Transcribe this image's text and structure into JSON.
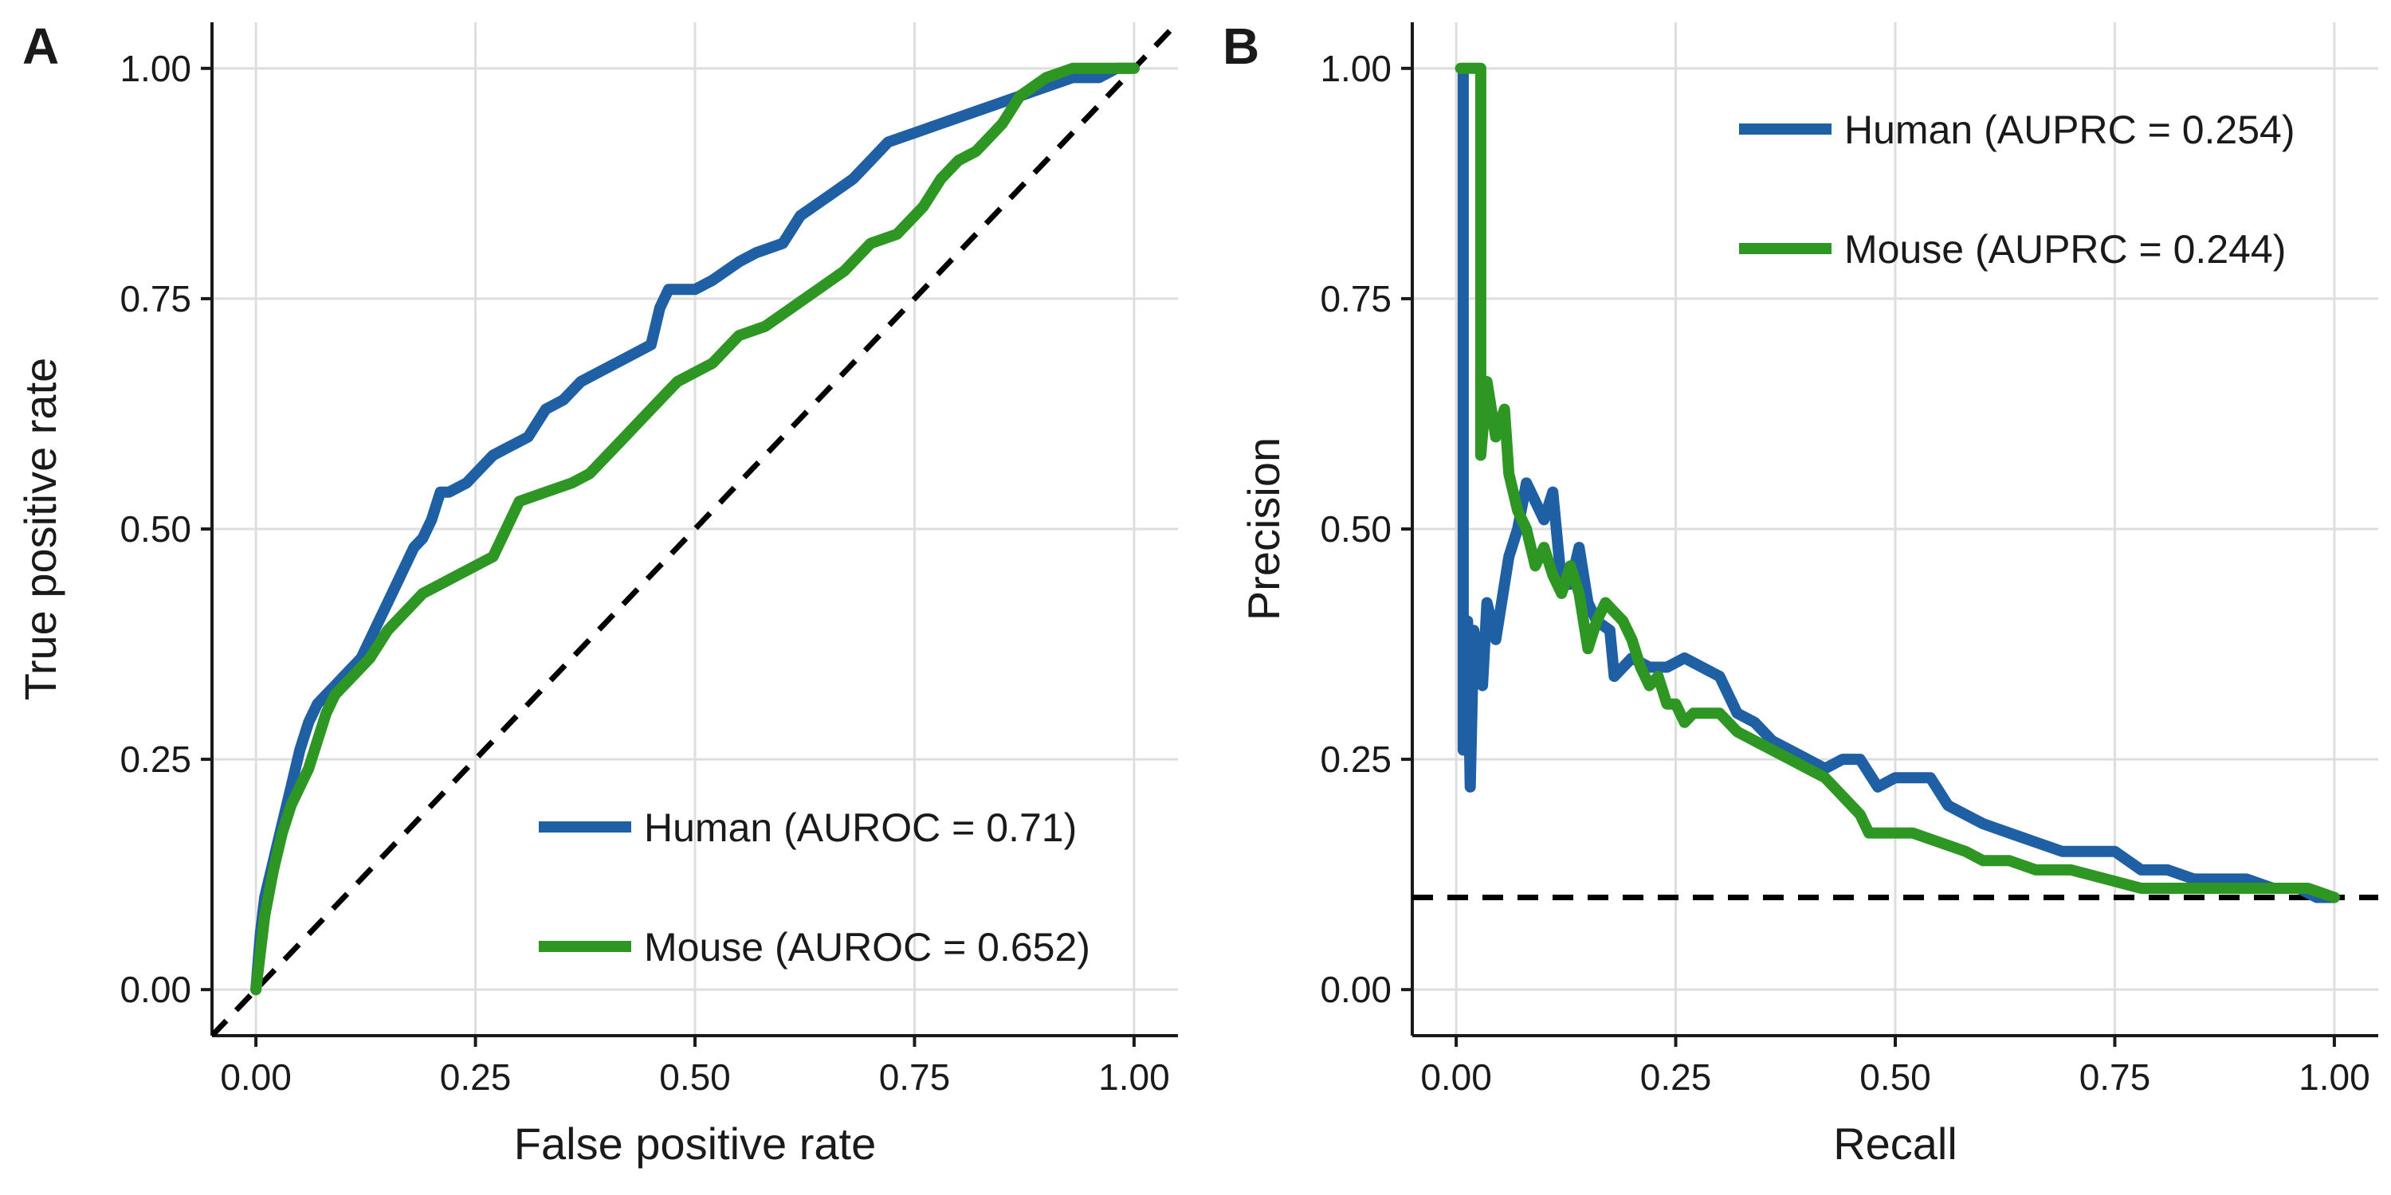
{
  "colors": {
    "human": "#1f5fa3",
    "mouse": "#2e9622",
    "reference": "#000000",
    "grid": "#dedede"
  },
  "chart_data": [
    {
      "type": "line",
      "panel_letter": "A",
      "xlabel": "False positive rate",
      "ylabel": "True positive rate",
      "xlim": [
        -0.05,
        1.05
      ],
      "ylim": [
        -0.05,
        1.05
      ],
      "x_ticks": [
        "0.00",
        "0.25",
        "0.50",
        "0.75",
        "1.00"
      ],
      "y_ticks": [
        "0.00",
        "0.25",
        "0.50",
        "0.75",
        "1.00"
      ],
      "grid": true,
      "legend_position": "bottom-right",
      "reference_line": {
        "style": "dashed",
        "points": [
          [
            -0.05,
            -0.05
          ],
          [
            1.05,
            1.05
          ]
        ]
      },
      "series": [
        {
          "name": "Human (AUROC = 0.71)",
          "color_key": "human",
          "points": [
            [
              0,
              0
            ],
            [
              0.005,
              0.06
            ],
            [
              0.01,
              0.1
            ],
            [
              0.02,
              0.14
            ],
            [
              0.03,
              0.18
            ],
            [
              0.04,
              0.22
            ],
            [
              0.05,
              0.26
            ],
            [
              0.06,
              0.29
            ],
            [
              0.07,
              0.31
            ],
            [
              0.08,
              0.32
            ],
            [
              0.09,
              0.33
            ],
            [
              0.1,
              0.34
            ],
            [
              0.12,
              0.36
            ],
            [
              0.13,
              0.38
            ],
            [
              0.14,
              0.4
            ],
            [
              0.15,
              0.42
            ],
            [
              0.17,
              0.46
            ],
            [
              0.18,
              0.48
            ],
            [
              0.19,
              0.49
            ],
            [
              0.2,
              0.51
            ],
            [
              0.21,
              0.54
            ],
            [
              0.22,
              0.54
            ],
            [
              0.24,
              0.55
            ],
            [
              0.25,
              0.56
            ],
            [
              0.27,
              0.58
            ],
            [
              0.29,
              0.59
            ],
            [
              0.31,
              0.6
            ],
            [
              0.33,
              0.63
            ],
            [
              0.35,
              0.64
            ],
            [
              0.37,
              0.66
            ],
            [
              0.39,
              0.67
            ],
            [
              0.41,
              0.68
            ],
            [
              0.43,
              0.69
            ],
            [
              0.45,
              0.7
            ],
            [
              0.46,
              0.74
            ],
            [
              0.47,
              0.76
            ],
            [
              0.5,
              0.76
            ],
            [
              0.52,
              0.77
            ],
            [
              0.55,
              0.79
            ],
            [
              0.57,
              0.8
            ],
            [
              0.6,
              0.81
            ],
            [
              0.62,
              0.84
            ],
            [
              0.65,
              0.86
            ],
            [
              0.68,
              0.88
            ],
            [
              0.7,
              0.9
            ],
            [
              0.72,
              0.92
            ],
            [
              0.75,
              0.93
            ],
            [
              0.78,
              0.94
            ],
            [
              0.81,
              0.95
            ],
            [
              0.84,
              0.96
            ],
            [
              0.87,
              0.97
            ],
            [
              0.9,
              0.98
            ],
            [
              0.93,
              0.99
            ],
            [
              0.96,
              0.99
            ],
            [
              0.98,
              1.0
            ],
            [
              1.0,
              1.0
            ]
          ]
        },
        {
          "name": "Mouse (AUROC = 0.652)",
          "color_key": "mouse",
          "points": [
            [
              0,
              0
            ],
            [
              0.005,
              0.04
            ],
            [
              0.01,
              0.08
            ],
            [
              0.02,
              0.13
            ],
            [
              0.03,
              0.17
            ],
            [
              0.04,
              0.2
            ],
            [
              0.05,
              0.22
            ],
            [
              0.06,
              0.24
            ],
            [
              0.07,
              0.27
            ],
            [
              0.08,
              0.3
            ],
            [
              0.09,
              0.32
            ],
            [
              0.11,
              0.34
            ],
            [
              0.13,
              0.36
            ],
            [
              0.15,
              0.39
            ],
            [
              0.17,
              0.41
            ],
            [
              0.19,
              0.43
            ],
            [
              0.21,
              0.44
            ],
            [
              0.23,
              0.45
            ],
            [
              0.25,
              0.46
            ],
            [
              0.27,
              0.47
            ],
            [
              0.28,
              0.49
            ],
            [
              0.29,
              0.51
            ],
            [
              0.3,
              0.53
            ],
            [
              0.33,
              0.54
            ],
            [
              0.36,
              0.55
            ],
            [
              0.38,
              0.56
            ],
            [
              0.4,
              0.58
            ],
            [
              0.42,
              0.6
            ],
            [
              0.44,
              0.62
            ],
            [
              0.46,
              0.64
            ],
            [
              0.48,
              0.66
            ],
            [
              0.5,
              0.67
            ],
            [
              0.52,
              0.68
            ],
            [
              0.55,
              0.71
            ],
            [
              0.58,
              0.72
            ],
            [
              0.61,
              0.74
            ],
            [
              0.64,
              0.76
            ],
            [
              0.67,
              0.78
            ],
            [
              0.7,
              0.81
            ],
            [
              0.73,
              0.82
            ],
            [
              0.76,
              0.85
            ],
            [
              0.78,
              0.88
            ],
            [
              0.8,
              0.9
            ],
            [
              0.82,
              0.91
            ],
            [
              0.84,
              0.93
            ],
            [
              0.85,
              0.94
            ],
            [
              0.87,
              0.97
            ],
            [
              0.9,
              0.99
            ],
            [
              0.93,
              1.0
            ],
            [
              0.96,
              1.0
            ],
            [
              1.0,
              1.0
            ]
          ]
        }
      ]
    },
    {
      "type": "line",
      "panel_letter": "B",
      "xlabel": "Recall",
      "ylabel": "Precision",
      "xlim": [
        -0.05,
        1.05
      ],
      "ylim": [
        -0.05,
        1.05
      ],
      "x_ticks": [
        "0.00",
        "0.25",
        "0.50",
        "0.75",
        "1.00"
      ],
      "y_ticks": [
        "0.00",
        "0.25",
        "0.50",
        "0.75",
        "1.00"
      ],
      "grid": true,
      "legend_position": "top-right",
      "reference_line": {
        "style": "dashed",
        "points": [
          [
            -0.05,
            0.1
          ],
          [
            1.05,
            0.1
          ]
        ]
      },
      "series": [
        {
          "name": "Human (AUPRC = 0.254)",
          "color_key": "human",
          "points": [
            [
              0.008,
              1.0
            ],
            [
              0.008,
              0.26
            ],
            [
              0.013,
              0.4
            ],
            [
              0.016,
              0.22
            ],
            [
              0.02,
              0.39
            ],
            [
              0.03,
              0.33
            ],
            [
              0.035,
              0.42
            ],
            [
              0.045,
              0.38
            ],
            [
              0.06,
              0.47
            ],
            [
              0.07,
              0.5
            ],
            [
              0.08,
              0.55
            ],
            [
              0.09,
              0.53
            ],
            [
              0.1,
              0.51
            ],
            [
              0.11,
              0.54
            ],
            [
              0.12,
              0.44
            ],
            [
              0.13,
              0.44
            ],
            [
              0.14,
              0.48
            ],
            [
              0.15,
              0.42
            ],
            [
              0.16,
              0.4
            ],
            [
              0.175,
              0.39
            ],
            [
              0.18,
              0.34
            ],
            [
              0.2,
              0.36
            ],
            [
              0.22,
              0.35
            ],
            [
              0.24,
              0.35
            ],
            [
              0.26,
              0.36
            ],
            [
              0.28,
              0.35
            ],
            [
              0.3,
              0.34
            ],
            [
              0.32,
              0.3
            ],
            [
              0.34,
              0.29
            ],
            [
              0.36,
              0.27
            ],
            [
              0.38,
              0.26
            ],
            [
              0.4,
              0.25
            ],
            [
              0.42,
              0.24
            ],
            [
              0.44,
              0.25
            ],
            [
              0.46,
              0.25
            ],
            [
              0.48,
              0.22
            ],
            [
              0.5,
              0.23
            ],
            [
              0.54,
              0.23
            ],
            [
              0.56,
              0.2
            ],
            [
              0.58,
              0.19
            ],
            [
              0.6,
              0.18
            ],
            [
              0.63,
              0.17
            ],
            [
              0.66,
              0.16
            ],
            [
              0.69,
              0.15
            ],
            [
              0.72,
              0.15
            ],
            [
              0.75,
              0.15
            ],
            [
              0.78,
              0.13
            ],
            [
              0.81,
              0.13
            ],
            [
              0.84,
              0.12
            ],
            [
              0.87,
              0.12
            ],
            [
              0.9,
              0.12
            ],
            [
              0.93,
              0.11
            ],
            [
              0.96,
              0.11
            ],
            [
              0.98,
              0.1
            ],
            [
              1.0,
              0.1
            ]
          ]
        },
        {
          "name": "Mouse (AUPRC = 0.244)",
          "color_key": "mouse",
          "points": [
            [
              0.005,
              1.0
            ],
            [
              0.028,
              1.0
            ],
            [
              0.028,
              0.58
            ],
            [
              0.035,
              0.66
            ],
            [
              0.045,
              0.6
            ],
            [
              0.055,
              0.63
            ],
            [
              0.06,
              0.56
            ],
            [
              0.07,
              0.52
            ],
            [
              0.08,
              0.5
            ],
            [
              0.09,
              0.46
            ],
            [
              0.1,
              0.48
            ],
            [
              0.11,
              0.45
            ],
            [
              0.12,
              0.43
            ],
            [
              0.13,
              0.46
            ],
            [
              0.14,
              0.43
            ],
            [
              0.15,
              0.37
            ],
            [
              0.16,
              0.4
            ],
            [
              0.17,
              0.42
            ],
            [
              0.18,
              0.41
            ],
            [
              0.19,
              0.4
            ],
            [
              0.2,
              0.38
            ],
            [
              0.21,
              0.35
            ],
            [
              0.22,
              0.33
            ],
            [
              0.23,
              0.34
            ],
            [
              0.24,
              0.31
            ],
            [
              0.25,
              0.31
            ],
            [
              0.26,
              0.29
            ],
            [
              0.27,
              0.3
            ],
            [
              0.3,
              0.3
            ],
            [
              0.32,
              0.28
            ],
            [
              0.34,
              0.27
            ],
            [
              0.36,
              0.26
            ],
            [
              0.38,
              0.25
            ],
            [
              0.4,
              0.24
            ],
            [
              0.42,
              0.23
            ],
            [
              0.44,
              0.21
            ],
            [
              0.46,
              0.19
            ],
            [
              0.47,
              0.17
            ],
            [
              0.5,
              0.17
            ],
            [
              0.52,
              0.17
            ],
            [
              0.55,
              0.16
            ],
            [
              0.58,
              0.15
            ],
            [
              0.6,
              0.14
            ],
            [
              0.63,
              0.14
            ],
            [
              0.66,
              0.13
            ],
            [
              0.7,
              0.13
            ],
            [
              0.74,
              0.12
            ],
            [
              0.78,
              0.11
            ],
            [
              0.82,
              0.11
            ],
            [
              0.86,
              0.11
            ],
            [
              0.9,
              0.11
            ],
            [
              0.94,
              0.11
            ],
            [
              0.97,
              0.11
            ],
            [
              1.0,
              0.1
            ]
          ]
        }
      ]
    }
  ]
}
